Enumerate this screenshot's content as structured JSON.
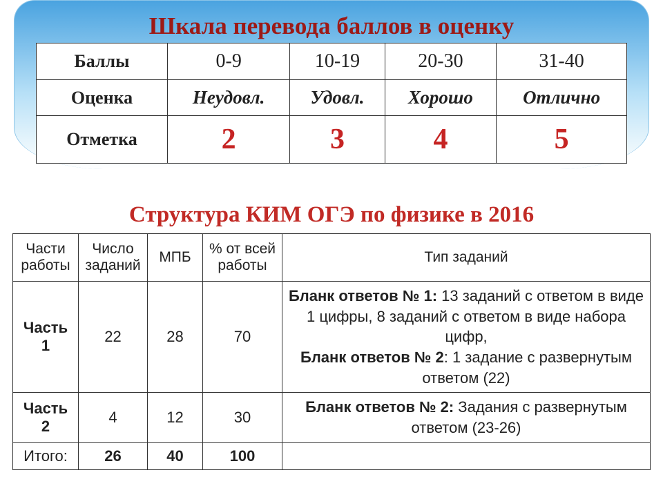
{
  "title1": "Шкала перевода баллов в оценку",
  "table1": {
    "row_headers": [
      "Баллы",
      "Оценка",
      "Отметка"
    ],
    "ranges": [
      "0-9",
      "10-19",
      "20-30",
      "31-40"
    ],
    "grades_text": [
      "Неудовл.",
      "Удовл.",
      "Хорошо",
      "Отлично"
    ],
    "marks": [
      "2",
      "3",
      "4",
      "5"
    ],
    "mark_color": "#c62423",
    "border_color": "#333333"
  },
  "title2": "Структура КИМ ОГЭ по физике в 2016",
  "table2": {
    "headers": [
      "Части работы",
      "Число заданий",
      "МПБ",
      "% от всей работы",
      "Тип заданий"
    ],
    "rows": [
      {
        "part": "Часть 1",
        "count": "22",
        "mpb": "28",
        "pct": "70",
        "desc_segments": [
          {
            "text": "Бланк ответов № 1: ",
            "bold": true
          },
          {
            "text": "13 заданий с ответом в виде 1 цифры, 8 заданий с ответом в виде набора цифр,",
            "bold": false
          },
          {
            "text": "Бланк ответов № 2",
            "bold": true,
            "break_before": true
          },
          {
            "text": ": 1 задание с развернутым ответом (22)",
            "bold": false
          }
        ]
      },
      {
        "part": "Часть 2",
        "count": "4",
        "mpb": "12",
        "pct": "30",
        "desc_segments": [
          {
            "text": "Бланк ответов № 2: ",
            "bold": true
          },
          {
            "text": "Задания с развернутым ответом (23-26)",
            "bold": false
          }
        ]
      }
    ],
    "total": {
      "label": "Итого:",
      "count": "26",
      "mpb": "40",
      "pct": "100"
    }
  },
  "colors": {
    "title": "#9d1a16",
    "title2": "#c12a25",
    "gradient_top": "#4aa3e0",
    "gradient_bottom": "#ffffff",
    "background": "#ffffff"
  },
  "fonts": {
    "title_size_pt": 26,
    "table1_cell_pt": 21,
    "mark_pt": 32,
    "table2_cell_pt": 16
  }
}
